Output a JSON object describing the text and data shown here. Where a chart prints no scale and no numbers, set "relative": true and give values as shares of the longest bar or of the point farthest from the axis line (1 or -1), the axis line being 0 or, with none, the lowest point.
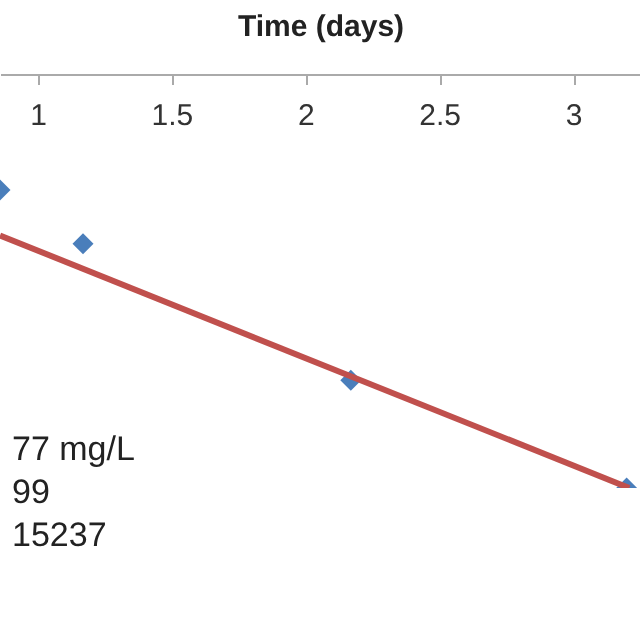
{
  "chart_data": {
    "type": "scatter",
    "xlabel": "Time (days)",
    "relative": true,
    "xlim": [
      0.86,
      3.25
    ],
    "xticks": [
      1,
      1.5,
      2,
      2.5,
      3
    ],
    "series": [
      {
        "color": "#4a7ebb",
        "marker": "diamond",
        "x": [
          0.86,
          1.17,
          2.17,
          3.2
        ],
        "values": [
          -0.28,
          -0.41,
          -0.74,
          -1
        ]
      },
      {
        "type": "line",
        "color": "#c0504d",
        "x": [
          0.86,
          3.21
        ],
        "values": [
          -0.39,
          -1
        ]
      }
    ],
    "annotations": [
      "77 mg/L",
      "99",
      "15237"
    ]
  }
}
